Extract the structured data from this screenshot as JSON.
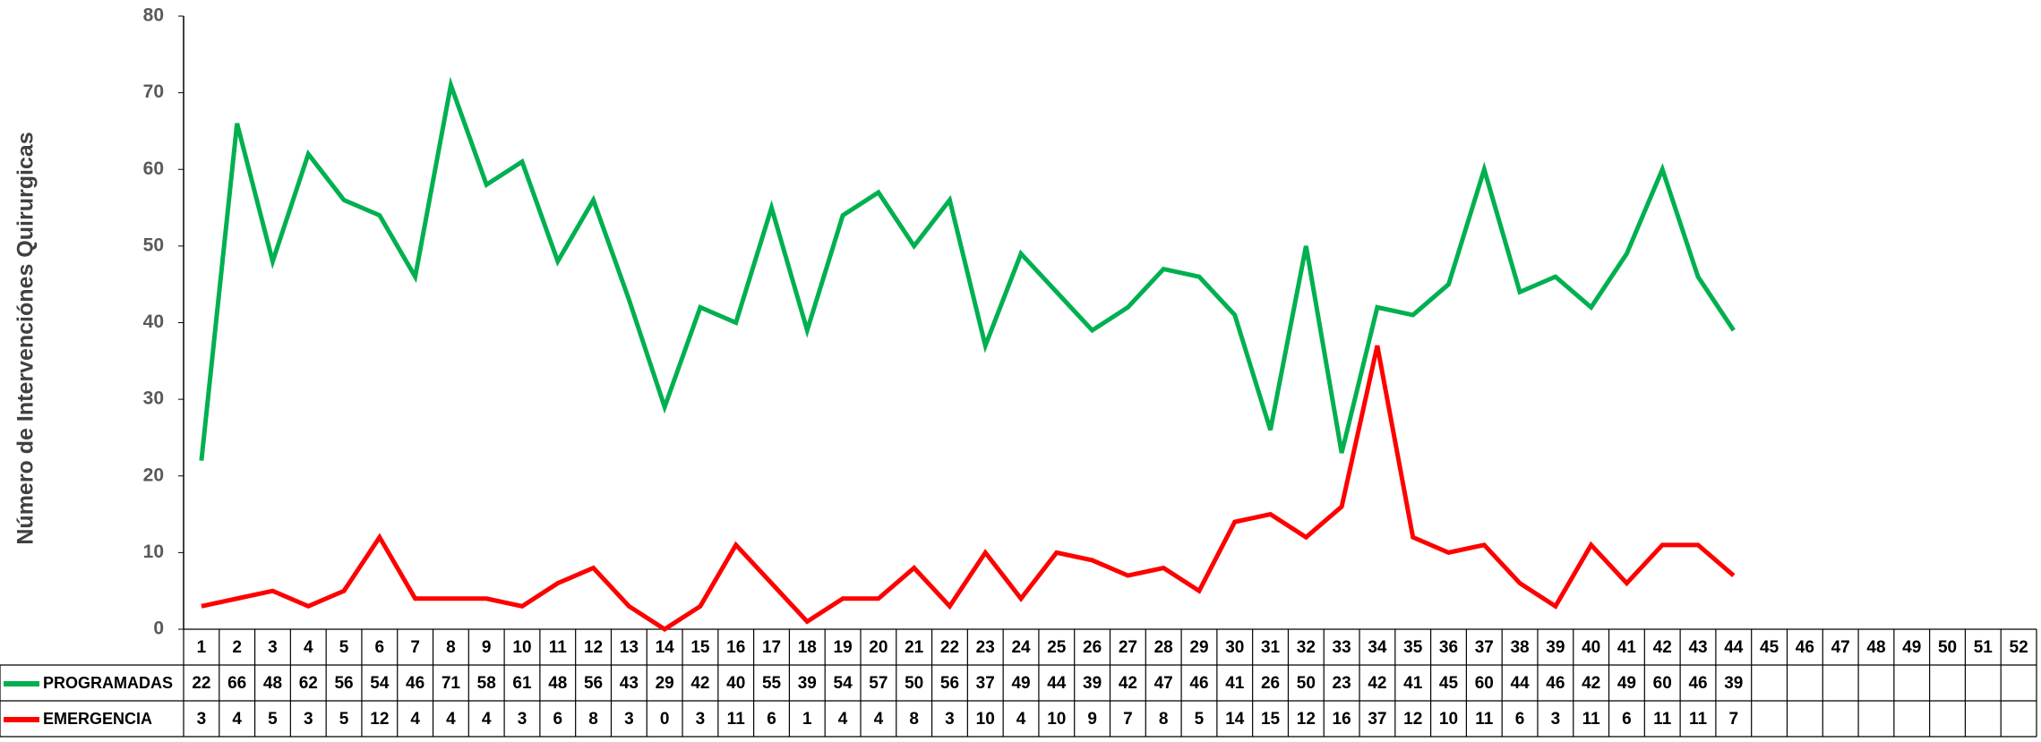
{
  "chart_data": {
    "type": "line",
    "y_label": "Número de Intervenciónes Quirurgicas",
    "categories": [
      "1",
      "2",
      "3",
      "4",
      "5",
      "6",
      "7",
      "8",
      "9",
      "10",
      "11",
      "12",
      "13",
      "14",
      "15",
      "16",
      "17",
      "18",
      "19",
      "20",
      "21",
      "22",
      "23",
      "24",
      "25",
      "26",
      "27",
      "28",
      "29",
      "30",
      "31",
      "32",
      "33",
      "34",
      "35",
      "36",
      "37",
      "38",
      "39",
      "40",
      "41",
      "42",
      "43",
      "44",
      "45",
      "46",
      "47",
      "48",
      "49",
      "50",
      "51",
      "52"
    ],
    "series": [
      {
        "name": "PROGRAMADAS",
        "color": "#00b050",
        "values": [
          22,
          66,
          48,
          62,
          56,
          54,
          46,
          71,
          58,
          61,
          48,
          56,
          43,
          29,
          42,
          40,
          55,
          39,
          54,
          57,
          50,
          56,
          37,
          49,
          44,
          39,
          42,
          47,
          46,
          41,
          26,
          50,
          23,
          42,
          41,
          45,
          60,
          44,
          46,
          42,
          49,
          60,
          46,
          39,
          null,
          null,
          null,
          null,
          null,
          null,
          null,
          null
        ]
      },
      {
        "name": "EMERGENCIA",
        "color": "#ff0000",
        "values": [
          3,
          4,
          5,
          3,
          5,
          12,
          4,
          4,
          4,
          3,
          6,
          8,
          3,
          0,
          3,
          11,
          6,
          1,
          4,
          4,
          8,
          3,
          10,
          4,
          10,
          9,
          7,
          8,
          5,
          14,
          15,
          12,
          16,
          37,
          12,
          10,
          11,
          6,
          3,
          11,
          6,
          11,
          11,
          7,
          null,
          null,
          null,
          null,
          null,
          null,
          null,
          null
        ]
      }
    ],
    "ylim": [
      0,
      80
    ],
    "yticks": [
      0,
      10,
      20,
      30,
      40,
      50,
      60,
      70,
      80
    ],
    "grid": false,
    "legend": "table"
  }
}
